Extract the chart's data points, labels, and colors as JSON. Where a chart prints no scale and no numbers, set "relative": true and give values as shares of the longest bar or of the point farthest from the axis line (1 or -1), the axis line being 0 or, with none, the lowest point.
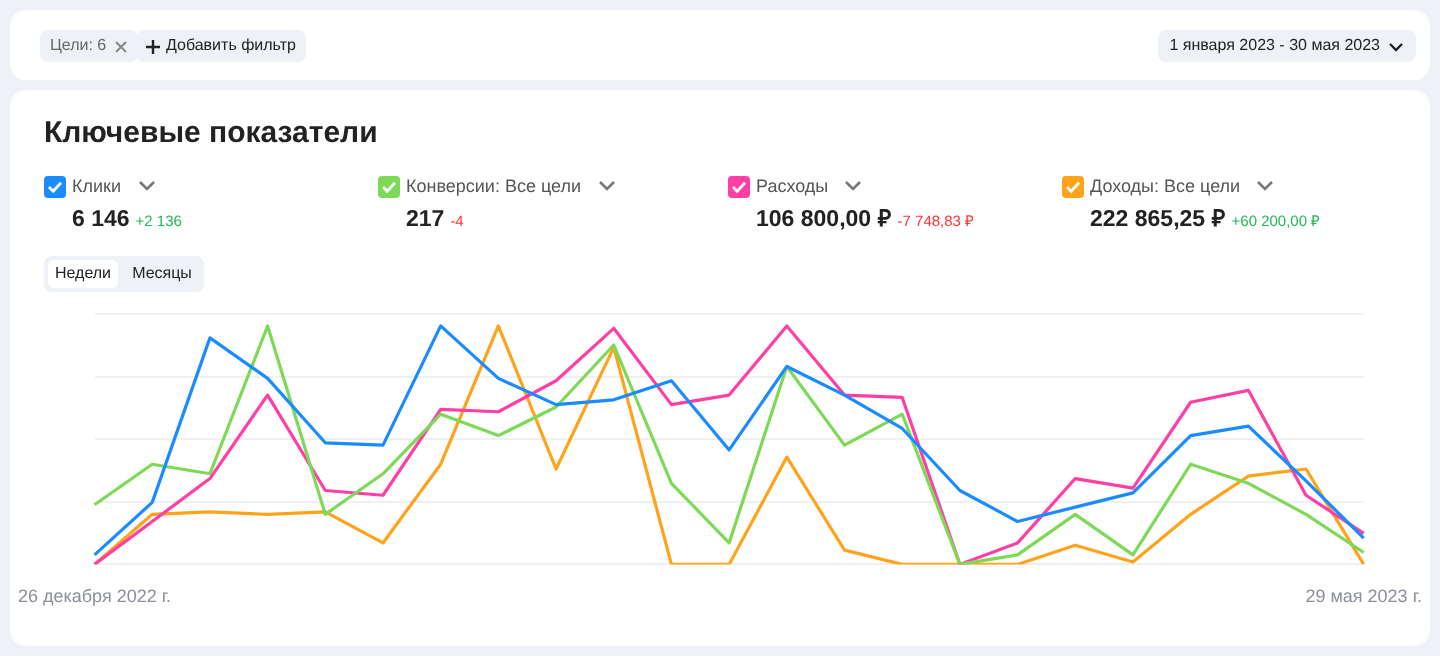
{
  "chart_data": {
    "type": "line",
    "title": "Ключевые показатели",
    "relative": true,
    "grid": "y",
    "legend": "top",
    "marker": "none",
    "line_style": "solid",
    "categories": [
      "26 декабря 2022 г.",
      null,
      null,
      null,
      null,
      null,
      null,
      null,
      null,
      null,
      null,
      null,
      null,
      null,
      null,
      null,
      null,
      null,
      null,
      null,
      null,
      null,
      "29 мая 2023 г."
    ],
    "series": [
      {
        "name": "Клики",
        "color": "#1a8cff",
        "values": [
          0.04,
          0.26,
          0.95,
          0.78,
          0.51,
          0.5,
          1.0,
          0.78,
          0.67,
          0.69,
          0.77,
          0.48,
          0.83,
          0.71,
          0.57,
          0.31,
          0.18,
          0.24,
          0.3,
          0.54,
          0.58,
          0.35,
          0.11
        ]
      },
      {
        "name": "Конверсии: Все цели",
        "color": "#7ed957",
        "values": [
          0.25,
          0.42,
          0.38,
          1.0,
          0.21,
          0.38,
          0.63,
          0.54,
          0.66,
          0.92,
          0.34,
          0.09,
          0.83,
          0.5,
          0.63,
          0,
          0.04,
          0.21,
          0.04,
          0.42,
          0.34,
          0.21,
          0.05
        ]
      },
      {
        "name": "Расходы",
        "color": "#ff3fa4",
        "values": [
          0,
          0.18,
          0.36,
          0.71,
          0.31,
          0.29,
          0.65,
          0.64,
          0.77,
          0.99,
          0.67,
          0.71,
          1.0,
          0.71,
          0.7,
          0,
          0.09,
          0.36,
          0.32,
          0.68,
          0.73,
          0.29,
          0.13
        ]
      },
      {
        "name": "Доходы: Все цели",
        "color": "#ffa31a",
        "values": [
          0,
          0.21,
          0.22,
          0.21,
          0.22,
          0.09,
          0.42,
          1.0,
          0.4,
          0.91,
          0,
          0,
          0.45,
          0.06,
          0,
          0,
          0,
          0.08,
          0.01,
          0.21,
          0.37,
          0.4,
          0
        ]
      }
    ],
    "annotations": [
      "Цели: 6",
      "Добавить фильтр",
      "1 января 2023 - 30 мая 2023",
      "6 146",
      "+2 136",
      "217",
      "-4",
      "106 800,00 ₽",
      "-7 748,83 ₽",
      "222 865,25 ₽",
      "+60 200,00 ₽",
      "Недели",
      "Месяцы"
    ]
  }
}
